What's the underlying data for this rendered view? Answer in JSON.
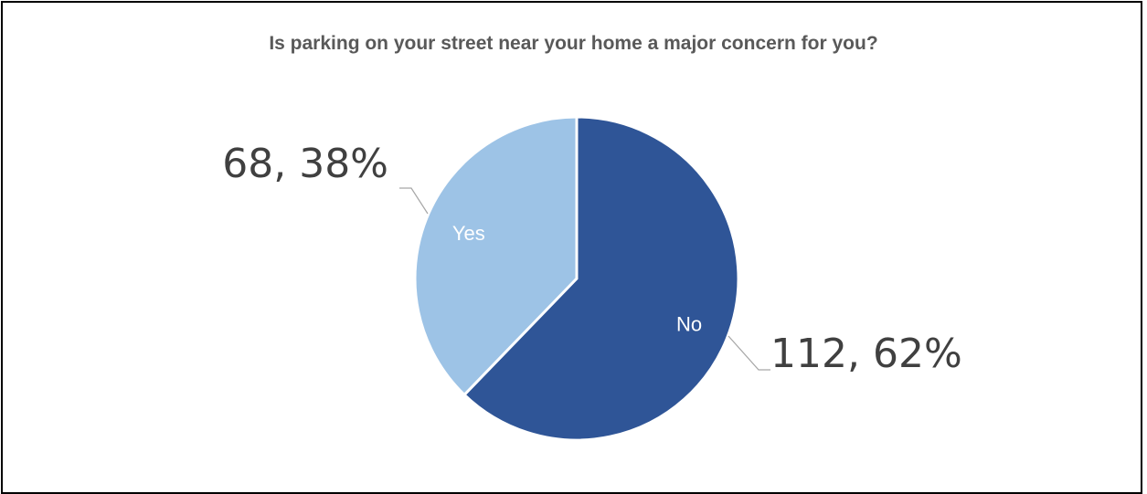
{
  "chart_data": {
    "type": "pie",
    "title": "Is parking on your street near your home a major concern for you?",
    "categories": [
      "No",
      "Yes"
    ],
    "values": [
      112,
      68
    ],
    "data_labels": [
      "112, 62%",
      "68, 38%"
    ],
    "colors": [
      "#2F5597",
      "#9DC3E6"
    ],
    "start": "top, clockwise",
    "legend": "none"
  }
}
